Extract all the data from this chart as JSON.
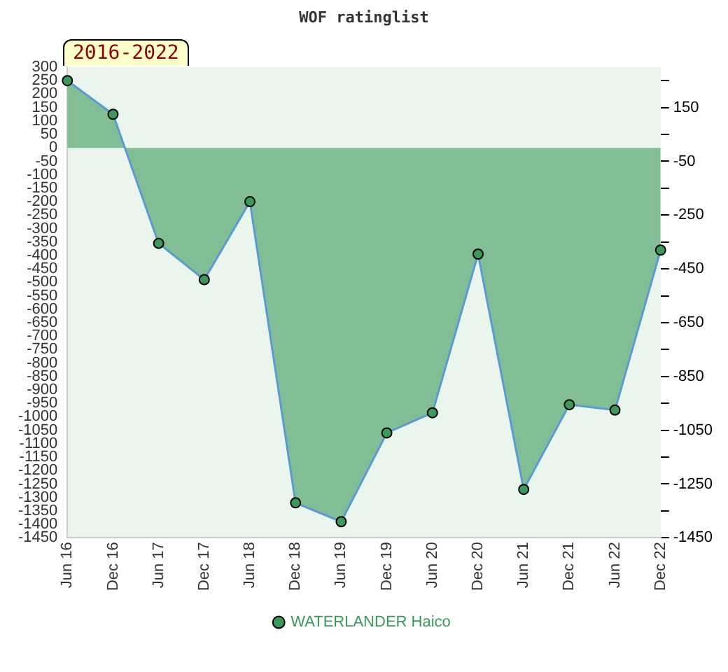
{
  "chart_data": {
    "type": "area",
    "title": "WOF ratinglist",
    "annotations": [
      "2016-2022"
    ],
    "categories": [
      "Jun 16",
      "Dec 16",
      "Jun 17",
      "Dec 17",
      "Jun 18",
      "Dec 18",
      "Jun 19",
      "Dec 19",
      "Jun 20",
      "Dec 20",
      "Jun 21",
      "Dec 21",
      "Jun 22",
      "Dec 22"
    ],
    "series": [
      {
        "name": "WATERLANDER Haico",
        "color": "#3a9a5a",
        "values": [
          250,
          125,
          -355,
          -490,
          -200,
          -1320,
          -1390,
          -1060,
          -985,
          -395,
          -1270,
          -955,
          -975,
          -380
        ]
      }
    ],
    "ylim": [
      -1450,
      300
    ],
    "yticks": [
      300,
      250,
      200,
      150,
      100,
      50,
      0,
      -50,
      -100,
      -150,
      -200,
      -250,
      -300,
      -350,
      -400,
      -450,
      -500,
      -550,
      -600,
      -650,
      -700,
      -750,
      -800,
      -850,
      -900,
      -950,
      -1000,
      -1050,
      -1100,
      -1150,
      -1200,
      -1250,
      -1300,
      -1350,
      -1400,
      -1450
    ],
    "y2lim": [
      -1450,
      300
    ],
    "y2ticks": [
      {
        "value": 250,
        "label": null
      },
      150,
      {
        "value": 50,
        "label": null
      },
      -50,
      {
        "value": -150,
        "label": null
      },
      -250,
      {
        "value": -350,
        "label": null
      },
      -450,
      {
        "value": -550,
        "label": null
      },
      -650,
      {
        "value": -750,
        "label": null
      },
      -850,
      {
        "value": -950,
        "label": null
      },
      -1050,
      {
        "value": -1150,
        "label": null
      },
      -1250,
      {
        "value": -1350,
        "label": null
      },
      -1450
    ],
    "grid": false,
    "legend": "bottom",
    "marker": "circle",
    "line_style": "solid"
  }
}
